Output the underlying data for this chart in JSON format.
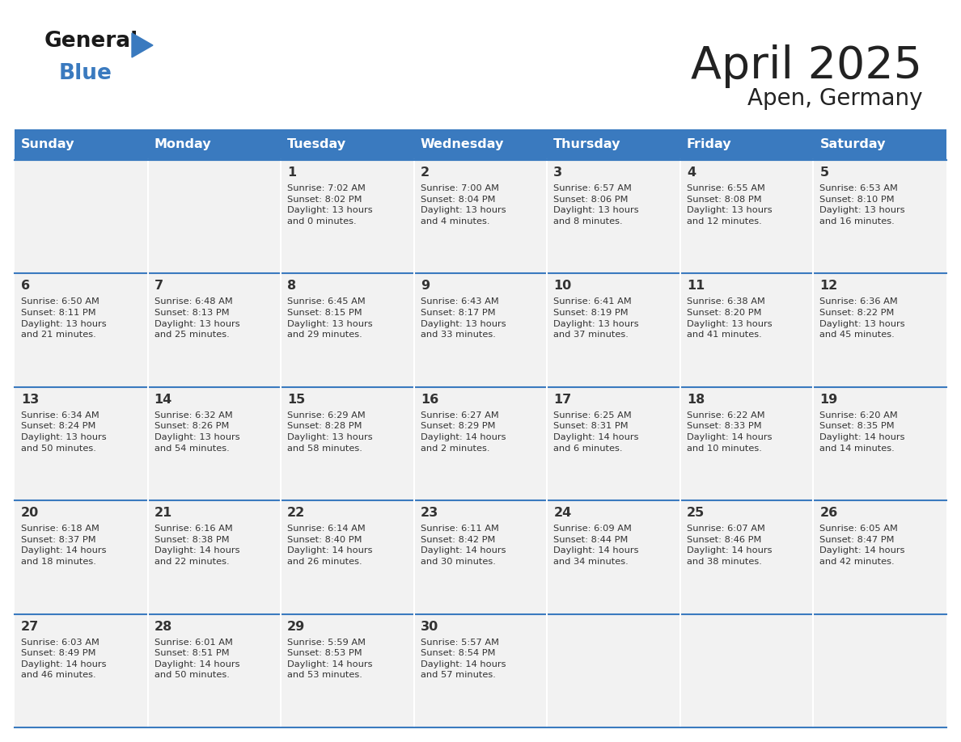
{
  "title": "April 2025",
  "subtitle": "Apen, Germany",
  "header_bg": "#3a7abf",
  "header_text_color": "#ffffff",
  "cell_bg": "#f2f2f2",
  "border_color": "#3a7abf",
  "title_color": "#222222",
  "day_text_color": "#333333",
  "days_of_week": [
    "Sunday",
    "Monday",
    "Tuesday",
    "Wednesday",
    "Thursday",
    "Friday",
    "Saturday"
  ],
  "calendar_data": [
    [
      {
        "day": "",
        "sunrise": "",
        "sunset": "",
        "daylight": ""
      },
      {
        "day": "",
        "sunrise": "",
        "sunset": "",
        "daylight": ""
      },
      {
        "day": "1",
        "sunrise": "Sunrise: 7:02 AM",
        "sunset": "Sunset: 8:02 PM",
        "daylight": "Daylight: 13 hours\nand 0 minutes."
      },
      {
        "day": "2",
        "sunrise": "Sunrise: 7:00 AM",
        "sunset": "Sunset: 8:04 PM",
        "daylight": "Daylight: 13 hours\nand 4 minutes."
      },
      {
        "day": "3",
        "sunrise": "Sunrise: 6:57 AM",
        "sunset": "Sunset: 8:06 PM",
        "daylight": "Daylight: 13 hours\nand 8 minutes."
      },
      {
        "day": "4",
        "sunrise": "Sunrise: 6:55 AM",
        "sunset": "Sunset: 8:08 PM",
        "daylight": "Daylight: 13 hours\nand 12 minutes."
      },
      {
        "day": "5",
        "sunrise": "Sunrise: 6:53 AM",
        "sunset": "Sunset: 8:10 PM",
        "daylight": "Daylight: 13 hours\nand 16 minutes."
      }
    ],
    [
      {
        "day": "6",
        "sunrise": "Sunrise: 6:50 AM",
        "sunset": "Sunset: 8:11 PM",
        "daylight": "Daylight: 13 hours\nand 21 minutes."
      },
      {
        "day": "7",
        "sunrise": "Sunrise: 6:48 AM",
        "sunset": "Sunset: 8:13 PM",
        "daylight": "Daylight: 13 hours\nand 25 minutes."
      },
      {
        "day": "8",
        "sunrise": "Sunrise: 6:45 AM",
        "sunset": "Sunset: 8:15 PM",
        "daylight": "Daylight: 13 hours\nand 29 minutes."
      },
      {
        "day": "9",
        "sunrise": "Sunrise: 6:43 AM",
        "sunset": "Sunset: 8:17 PM",
        "daylight": "Daylight: 13 hours\nand 33 minutes."
      },
      {
        "day": "10",
        "sunrise": "Sunrise: 6:41 AM",
        "sunset": "Sunset: 8:19 PM",
        "daylight": "Daylight: 13 hours\nand 37 minutes."
      },
      {
        "day": "11",
        "sunrise": "Sunrise: 6:38 AM",
        "sunset": "Sunset: 8:20 PM",
        "daylight": "Daylight: 13 hours\nand 41 minutes."
      },
      {
        "day": "12",
        "sunrise": "Sunrise: 6:36 AM",
        "sunset": "Sunset: 8:22 PM",
        "daylight": "Daylight: 13 hours\nand 45 minutes."
      }
    ],
    [
      {
        "day": "13",
        "sunrise": "Sunrise: 6:34 AM",
        "sunset": "Sunset: 8:24 PM",
        "daylight": "Daylight: 13 hours\nand 50 minutes."
      },
      {
        "day": "14",
        "sunrise": "Sunrise: 6:32 AM",
        "sunset": "Sunset: 8:26 PM",
        "daylight": "Daylight: 13 hours\nand 54 minutes."
      },
      {
        "day": "15",
        "sunrise": "Sunrise: 6:29 AM",
        "sunset": "Sunset: 8:28 PM",
        "daylight": "Daylight: 13 hours\nand 58 minutes."
      },
      {
        "day": "16",
        "sunrise": "Sunrise: 6:27 AM",
        "sunset": "Sunset: 8:29 PM",
        "daylight": "Daylight: 14 hours\nand 2 minutes."
      },
      {
        "day": "17",
        "sunrise": "Sunrise: 6:25 AM",
        "sunset": "Sunset: 8:31 PM",
        "daylight": "Daylight: 14 hours\nand 6 minutes."
      },
      {
        "day": "18",
        "sunrise": "Sunrise: 6:22 AM",
        "sunset": "Sunset: 8:33 PM",
        "daylight": "Daylight: 14 hours\nand 10 minutes."
      },
      {
        "day": "19",
        "sunrise": "Sunrise: 6:20 AM",
        "sunset": "Sunset: 8:35 PM",
        "daylight": "Daylight: 14 hours\nand 14 minutes."
      }
    ],
    [
      {
        "day": "20",
        "sunrise": "Sunrise: 6:18 AM",
        "sunset": "Sunset: 8:37 PM",
        "daylight": "Daylight: 14 hours\nand 18 minutes."
      },
      {
        "day": "21",
        "sunrise": "Sunrise: 6:16 AM",
        "sunset": "Sunset: 8:38 PM",
        "daylight": "Daylight: 14 hours\nand 22 minutes."
      },
      {
        "day": "22",
        "sunrise": "Sunrise: 6:14 AM",
        "sunset": "Sunset: 8:40 PM",
        "daylight": "Daylight: 14 hours\nand 26 minutes."
      },
      {
        "day": "23",
        "sunrise": "Sunrise: 6:11 AM",
        "sunset": "Sunset: 8:42 PM",
        "daylight": "Daylight: 14 hours\nand 30 minutes."
      },
      {
        "day": "24",
        "sunrise": "Sunrise: 6:09 AM",
        "sunset": "Sunset: 8:44 PM",
        "daylight": "Daylight: 14 hours\nand 34 minutes."
      },
      {
        "day": "25",
        "sunrise": "Sunrise: 6:07 AM",
        "sunset": "Sunset: 8:46 PM",
        "daylight": "Daylight: 14 hours\nand 38 minutes."
      },
      {
        "day": "26",
        "sunrise": "Sunrise: 6:05 AM",
        "sunset": "Sunset: 8:47 PM",
        "daylight": "Daylight: 14 hours\nand 42 minutes."
      }
    ],
    [
      {
        "day": "27",
        "sunrise": "Sunrise: 6:03 AM",
        "sunset": "Sunset: 8:49 PM",
        "daylight": "Daylight: 14 hours\nand 46 minutes."
      },
      {
        "day": "28",
        "sunrise": "Sunrise: 6:01 AM",
        "sunset": "Sunset: 8:51 PM",
        "daylight": "Daylight: 14 hours\nand 50 minutes."
      },
      {
        "day": "29",
        "sunrise": "Sunrise: 5:59 AM",
        "sunset": "Sunset: 8:53 PM",
        "daylight": "Daylight: 14 hours\nand 53 minutes."
      },
      {
        "day": "30",
        "sunrise": "Sunrise: 5:57 AM",
        "sunset": "Sunset: 8:54 PM",
        "daylight": "Daylight: 14 hours\nand 57 minutes."
      },
      {
        "day": "",
        "sunrise": "",
        "sunset": "",
        "daylight": ""
      },
      {
        "day": "",
        "sunrise": "",
        "sunset": "",
        "daylight": ""
      },
      {
        "day": "",
        "sunrise": "",
        "sunset": "",
        "daylight": ""
      }
    ]
  ],
  "logo_general_color": "#1a1a1a",
  "logo_blue_color": "#3a7abf",
  "logo_triangle_color": "#3a7abf"
}
